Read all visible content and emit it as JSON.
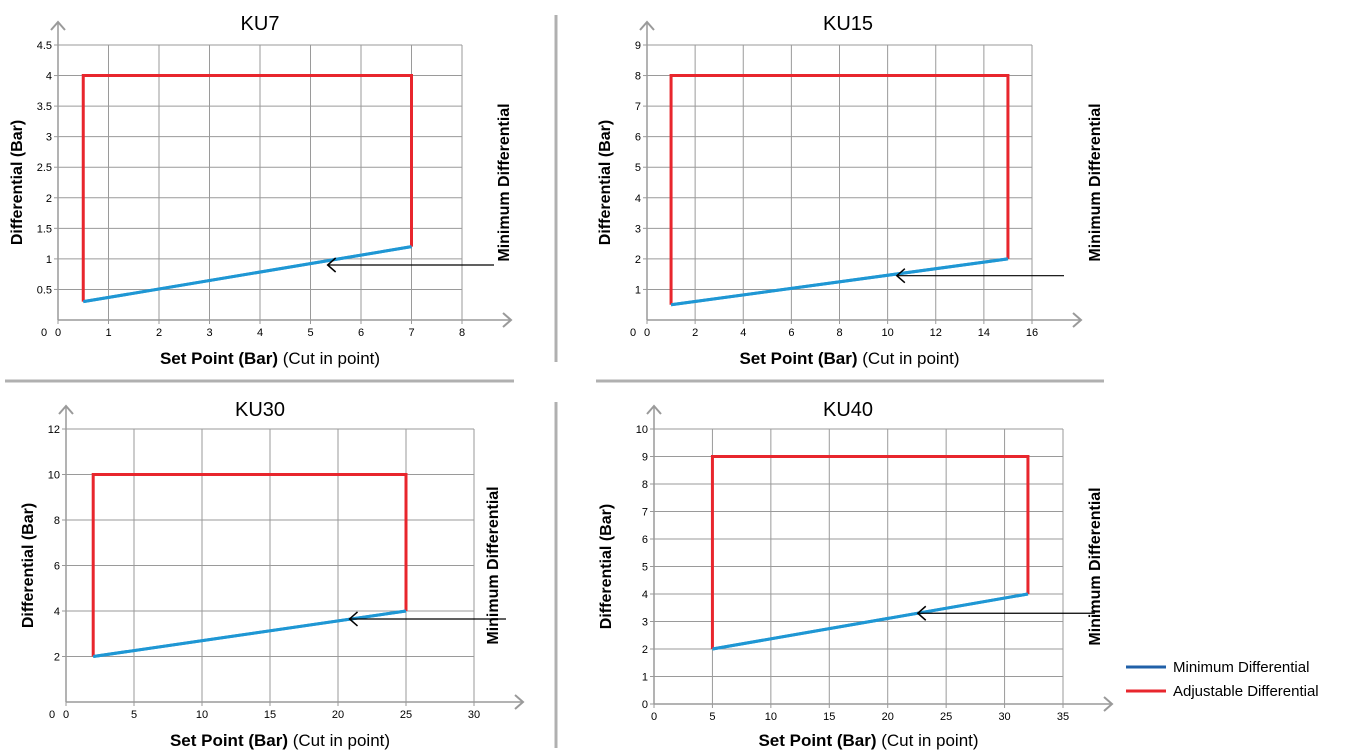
{
  "colors": {
    "min": "#1f97d4",
    "adj": "#e8262d",
    "legend_min": "#2060a8",
    "grid": "#9a9a9a",
    "divider": "#b0b0b0"
  },
  "legend": {
    "items": [
      "Minimum Differential",
      "Adjustable Differential"
    ]
  },
  "chart_data": [
    {
      "type": "line",
      "title": "KU7",
      "ylabel": "Differential (Bar)",
      "xlabel_bold": "Set Point (Bar)",
      "xlabel_rest": "(Cut in point)",
      "right_label": "Minimum Differential",
      "xlim": [
        0,
        8
      ],
      "ylim": [
        0,
        4.5
      ],
      "xticks": [
        0,
        1,
        2,
        3,
        4,
        5,
        6,
        7,
        8
      ],
      "yticks": [
        0.5,
        1,
        1.5,
        2,
        2.5,
        3,
        3.5,
        4,
        4.5
      ],
      "xtick_labels": [
        "0",
        "1",
        "2",
        "3",
        "4",
        "5",
        "6",
        "7",
        "8"
      ],
      "ytick_labels": [
        "0.5",
        "1",
        "1.5",
        "2",
        "2.5",
        "3",
        "3.5",
        "4",
        "4.5"
      ],
      "series": [
        {
          "name": "Minimum Differential",
          "x": [
            0.5,
            7
          ],
          "y": [
            0.3,
            1.2
          ]
        },
        {
          "name": "Adjustable Differential",
          "x": [
            0.5,
            0.5,
            7,
            7
          ],
          "y": [
            0.3,
            4,
            4,
            1.2
          ]
        }
      ],
      "arrow": {
        "x": 5.3,
        "y": 0.9
      }
    },
    {
      "type": "line",
      "title": "KU15",
      "ylabel": "Differential (Bar)",
      "xlabel_bold": "Set Point (Bar)",
      "xlabel_rest": "(Cut in point)",
      "right_label": "Minimum Differential",
      "xlim": [
        0,
        16
      ],
      "ylim": [
        0,
        9
      ],
      "xticks": [
        0,
        2,
        4,
        6,
        8,
        10,
        12,
        14,
        16
      ],
      "yticks": [
        1,
        2,
        3,
        4,
        5,
        6,
        7,
        8,
        9
      ],
      "xtick_labels": [
        "0",
        "2",
        "4",
        "6",
        "8",
        "10",
        "12",
        "14",
        "16"
      ],
      "ytick_labels": [
        "1",
        "2",
        "3",
        "4",
        "5",
        "6",
        "7",
        "8",
        "9"
      ],
      "series": [
        {
          "name": "Minimum Differential",
          "x": [
            1,
            15
          ],
          "y": [
            0.5,
            2
          ]
        },
        {
          "name": "Adjustable Differential",
          "x": [
            1,
            1,
            15,
            15
          ],
          "y": [
            0.5,
            8,
            8,
            2
          ]
        }
      ],
      "arrow": {
        "x": 10.3,
        "y": 1.45
      }
    },
    {
      "type": "line",
      "title": "KU30",
      "ylabel": "Differential (Bar)",
      "xlabel_bold": "Set Point (Bar)",
      "xlabel_rest": "(Cut in point)",
      "right_label": "Minimum Differential",
      "xlim": [
        0,
        30
      ],
      "ylim": [
        0,
        12
      ],
      "xticks": [
        0,
        5,
        10,
        15,
        20,
        25,
        30
      ],
      "yticks": [
        2,
        4,
        6,
        8,
        10,
        12
      ],
      "xtick_labels": [
        "0",
        "5",
        "10",
        "15",
        "20",
        "25",
        "30"
      ],
      "ytick_labels": [
        "2",
        "4",
        "6",
        "8",
        "10",
        "12"
      ],
      "series": [
        {
          "name": "Minimum Differential",
          "x": [
            2,
            25
          ],
          "y": [
            2,
            4
          ]
        },
        {
          "name": "Adjustable Differential",
          "x": [
            2,
            2,
            25,
            25
          ],
          "y": [
            2,
            10,
            10,
            4
          ]
        }
      ],
      "arrow": {
        "x": 20.7,
        "y": 3.65
      }
    },
    {
      "type": "line",
      "title": "KU40",
      "ylabel": "Differential (Bar)",
      "xlabel_bold": "Set Point (Bar)",
      "xlabel_rest": "(Cut in point)",
      "right_label": "Minimum Differential",
      "xlim": [
        0,
        35
      ],
      "ylim": [
        0,
        10
      ],
      "xticks": [
        0,
        5,
        10,
        15,
        20,
        25,
        30,
        35
      ],
      "yticks": [
        0,
        1,
        2,
        3,
        4,
        5,
        6,
        7,
        8,
        9,
        10
      ],
      "xtick_labels": [
        "0",
        "5",
        "10",
        "15",
        "20",
        "25",
        "30",
        "35"
      ],
      "ytick_labels": [
        "0",
        "1",
        "2",
        "3",
        "4",
        "5",
        "6",
        "7",
        "8",
        "9",
        "10"
      ],
      "series": [
        {
          "name": "Minimum Differential",
          "x": [
            5,
            32
          ],
          "y": [
            2,
            4
          ]
        },
        {
          "name": "Adjustable Differential",
          "x": [
            5,
            5,
            32,
            32
          ],
          "y": [
            2,
            9,
            9,
            4
          ]
        }
      ],
      "arrow": {
        "x": 22.4,
        "y": 3.3
      }
    }
  ]
}
